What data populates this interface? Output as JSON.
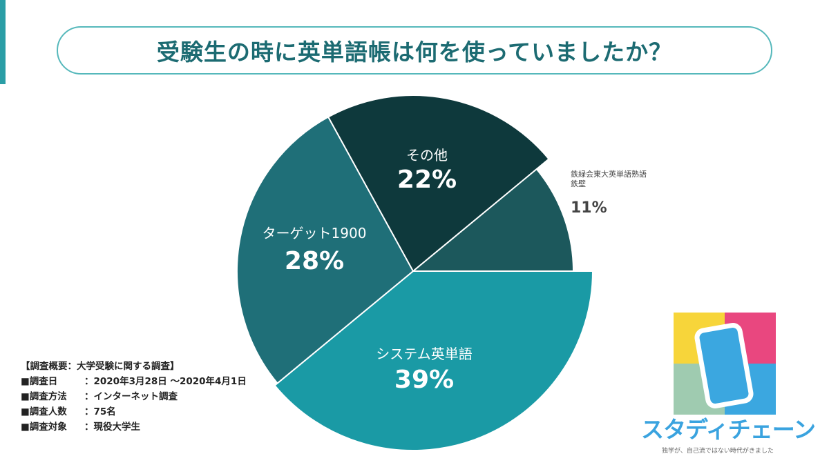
{
  "title": "受験生の時に英単語帳は何を使っていましたか？",
  "chart_data": {
    "type": "pie",
    "title": "受験生の時に英単語帳は何を使っていましたか？",
    "slices": [
      {
        "label": "システム英単語",
        "value": 39,
        "display": "39%",
        "color": "#1a9aa5"
      },
      {
        "label": "ターゲット1900",
        "value": 28,
        "display": "28%",
        "color": "#1f6f78"
      },
      {
        "label": "その他",
        "value": 22,
        "display": "22%",
        "color": "#0e393c"
      },
      {
        "label": "鉄緑会東大英単語熟語 鉄壁",
        "label_lines": [
          "鉄緑会東大英単語熟語",
          "鉄壁"
        ],
        "value": 11,
        "display": "11%",
        "color": "#1c585c"
      }
    ]
  },
  "survey": {
    "heading": "【調査概要：大学受験に関する調査】",
    "rows": [
      {
        "k": "■調査日",
        "v": "：2020年3月28日 ～2020年4月1日"
      },
      {
        "k": "■調査方法",
        "v": "：インターネット調査"
      },
      {
        "k": "■調査人数",
        "v": "：75名"
      },
      {
        "k": "■調査対象",
        "v": "：現役大学生"
      }
    ]
  },
  "logo": {
    "brand": "スタディチェーン",
    "tagline": "独学が、自己流ではない時代がきました"
  }
}
